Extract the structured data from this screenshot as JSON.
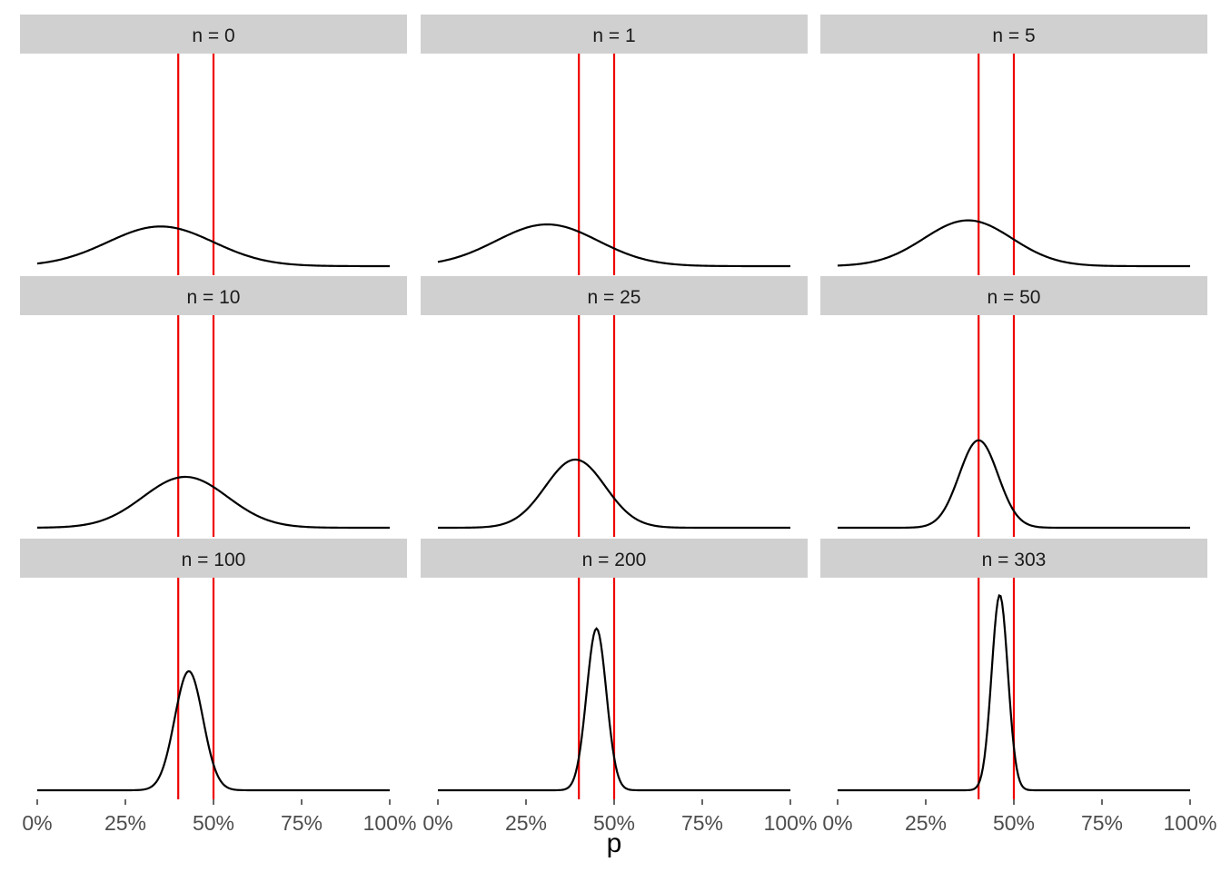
{
  "chart_data": {
    "type": "line",
    "xlabel": "p",
    "ylabel": "",
    "xlim": [
      0,
      1
    ],
    "x_ticks": [
      0,
      0.25,
      0.5,
      0.75,
      1
    ],
    "x_tick_labels": [
      "0%",
      "25%",
      "50%",
      "75%",
      "100%"
    ],
    "reference_lines_x": [
      0.4,
      0.5
    ],
    "reference_line_color": "#ee0000",
    "curve_color": "#000000",
    "strip_color": "#d0d0d0",
    "grid": false,
    "layout": "3x3 facets, shared x axis",
    "facets": [
      {
        "label": "n = 0",
        "peak_x": 0.35,
        "sd": 0.15,
        "peak_height": 0.195
      },
      {
        "label": "n = 1",
        "peak_x": 0.31,
        "sd": 0.145,
        "peak_height": 0.205
      },
      {
        "label": "n = 5",
        "peak_x": 0.37,
        "sd": 0.125,
        "peak_height": 0.225
      },
      {
        "label": "n = 10",
        "peak_x": 0.42,
        "sd": 0.12,
        "peak_height": 0.25
      },
      {
        "label": "n = 25",
        "peak_x": 0.39,
        "sd": 0.085,
        "peak_height": 0.335
      },
      {
        "label": "n = 50",
        "peak_x": 0.4,
        "sd": 0.055,
        "peak_height": 0.43
      },
      {
        "label": "n = 100",
        "peak_x": 0.43,
        "sd": 0.04,
        "peak_height": 0.585
      },
      {
        "label": "n = 200",
        "peak_x": 0.45,
        "sd": 0.028,
        "peak_height": 0.795
      },
      {
        "label": "n = 303",
        "peak_x": 0.46,
        "sd": 0.023,
        "peak_height": 0.96
      }
    ]
  }
}
